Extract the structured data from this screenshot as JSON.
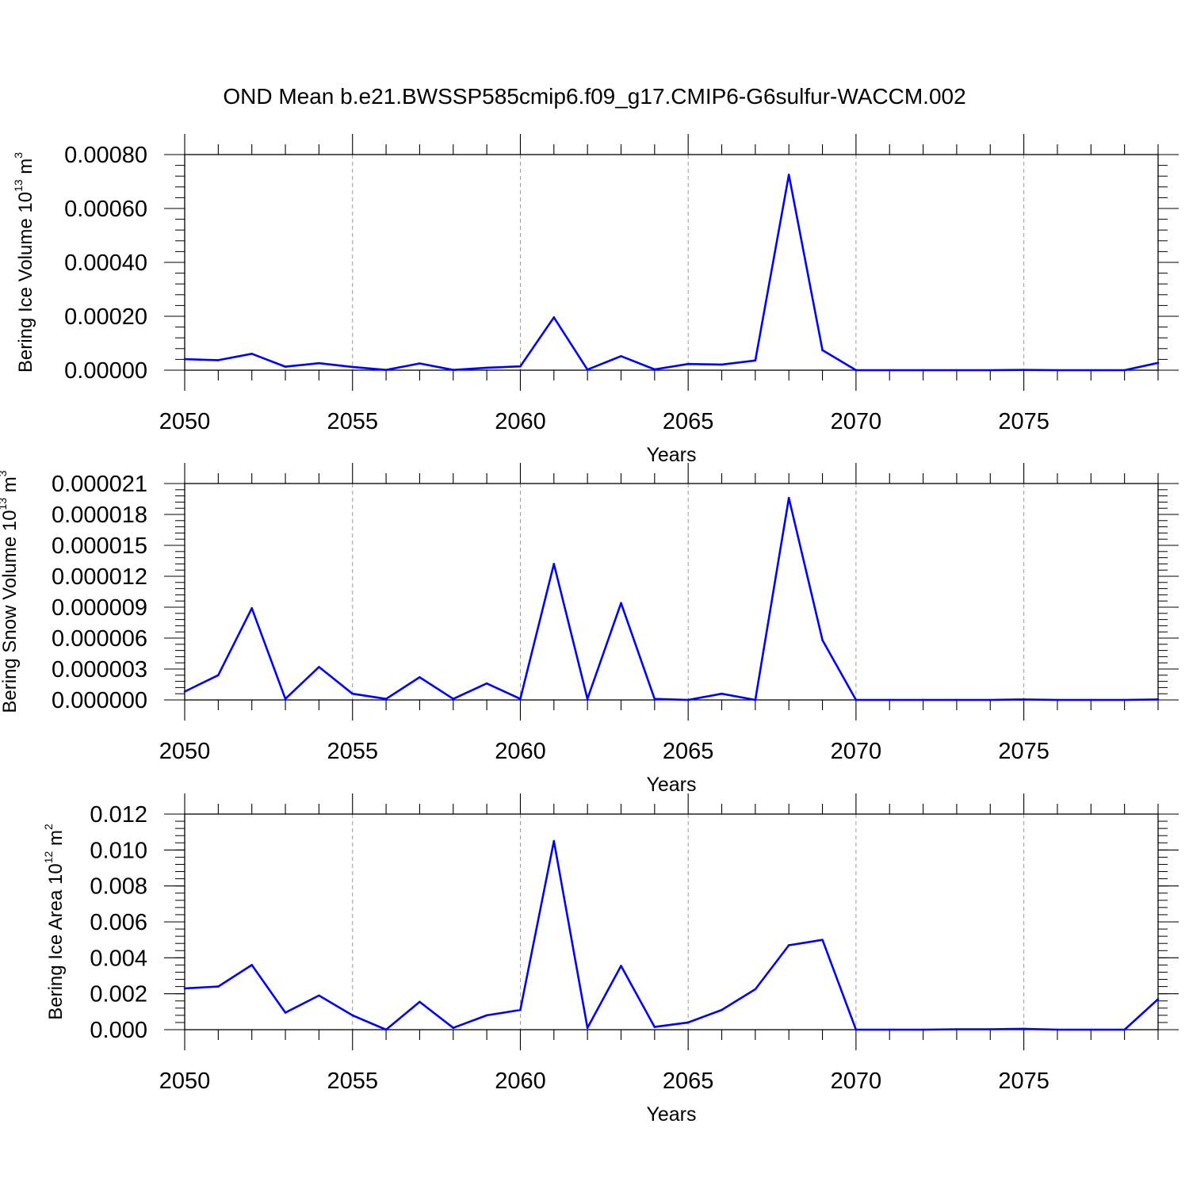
{
  "figure": {
    "title": "OND Mean b.e21.BWSSP585cmip6.f09_g17.CMIP6-G6sulfur-WACCM.002"
  },
  "chart_data": [
    {
      "type": "line",
      "xlabel": "Years",
      "ylabel": {
        "text": "Bering Ice Volume 10",
        "exp": "13",
        "unit": " m",
        "unit_exp": "3"
      },
      "xlim": [
        2050,
        2079
      ],
      "ylim": [
        0,
        0.0008
      ],
      "x_ticks": [
        2050,
        2055,
        2060,
        2065,
        2070,
        2075
      ],
      "x_tick_labels": [
        "2050",
        "2055",
        "2060",
        "2065",
        "2070",
        "2075"
      ],
      "y_ticks": [
        0,
        0.0002,
        0.0004,
        0.0006,
        0.0008
      ],
      "y_tick_labels": [
        "0.00000",
        "0.00020",
        "0.00040",
        "0.00060",
        "0.00080"
      ],
      "y_minor_step": 4e-05,
      "grid": "dashed vertical at major x ticks",
      "line_color": "#0000ff",
      "x": [
        2050,
        2051,
        2052,
        2053,
        2054,
        2055,
        2056,
        2057,
        2058,
        2059,
        2060,
        2061,
        2062,
        2063,
        2064,
        2065,
        2066,
        2067,
        2068,
        2069,
        2070,
        2071,
        2072,
        2073,
        2074,
        2075,
        2076,
        2077,
        2078,
        2079
      ],
      "values": [
        4.1e-05,
        3.7e-05,
        6.1e-05,
        1.3e-05,
        2.6e-05,
        1.2e-05,
        1e-06,
        2.5e-05,
        1e-06,
        9e-06,
        1.4e-05,
        0.000196,
        2e-06,
        5.2e-05,
        3e-06,
        2.3e-05,
        2.1e-05,
        3.6e-05,
        0.000725,
        7.4e-05,
        0.0,
        0.0,
        0.0,
        0.0,
        0.0,
        1e-06,
        0.0,
        0.0,
        0.0,
        2.7e-05
      ]
    },
    {
      "type": "line",
      "xlabel": "Years",
      "ylabel": {
        "text": "Bering Snow Volume 10",
        "exp": "13",
        "unit": " m",
        "unit_exp": "3"
      },
      "xlim": [
        2050,
        2079
      ],
      "ylim": [
        0,
        2.1e-05
      ],
      "x_ticks": [
        2050,
        2055,
        2060,
        2065,
        2070,
        2075
      ],
      "x_tick_labels": [
        "2050",
        "2055",
        "2060",
        "2065",
        "2070",
        "2075"
      ],
      "y_ticks": [
        0,
        3e-06,
        6e-06,
        9e-06,
        1.2e-05,
        1.5e-05,
        1.8e-05,
        2.1e-05
      ],
      "y_tick_labels": [
        "0.000000",
        "0.000003",
        "0.000006",
        "0.000009",
        "0.000012",
        "0.000015",
        "0.000018",
        "0.000021"
      ],
      "y_minor_step": 6e-07,
      "grid": "dashed vertical at major x ticks",
      "line_color": "#0000ff",
      "x": [
        2050,
        2051,
        2052,
        2053,
        2054,
        2055,
        2056,
        2057,
        2058,
        2059,
        2060,
        2061,
        2062,
        2063,
        2064,
        2065,
        2066,
        2067,
        2068,
        2069,
        2070,
        2071,
        2072,
        2073,
        2074,
        2075,
        2076,
        2077,
        2078,
        2079
      ],
      "values": [
        8.1e-07,
        2.4e-06,
        8.9e-06,
        1e-07,
        3.2e-06,
        6e-07,
        1e-07,
        2.2e-06,
        1e-07,
        1.6e-06,
        1e-07,
        1.32e-05,
        1e-07,
        9.4e-06,
        1e-07,
        0.0,
        6e-07,
        0.0,
        1.96e-05,
        5.8e-06,
        0.0,
        0.0,
        0.0,
        0.0,
        0.0,
        5e-08,
        0.0,
        0.0,
        0.0,
        5e-08
      ]
    },
    {
      "type": "line",
      "xlabel": "Years",
      "ylabel": {
        "text": "Bering Ice Area 10",
        "exp": "12",
        "unit": " m",
        "unit_exp": "2"
      },
      "xlim": [
        2050,
        2079
      ],
      "ylim": [
        0,
        0.012
      ],
      "x_ticks": [
        2050,
        2055,
        2060,
        2065,
        2070,
        2075
      ],
      "x_tick_labels": [
        "2050",
        "2055",
        "2060",
        "2065",
        "2070",
        "2075"
      ],
      "y_ticks": [
        0,
        0.002,
        0.004,
        0.006,
        0.008,
        0.01,
        0.012
      ],
      "y_tick_labels": [
        "0.000",
        "0.002",
        "0.004",
        "0.006",
        "0.008",
        "0.010",
        "0.012"
      ],
      "y_minor_step": 0.0004,
      "grid": "dashed vertical at major x ticks",
      "line_color": "#0000ff",
      "x": [
        2050,
        2051,
        2052,
        2053,
        2054,
        2055,
        2056,
        2057,
        2058,
        2059,
        2060,
        2061,
        2062,
        2063,
        2064,
        2065,
        2066,
        2067,
        2068,
        2069,
        2070,
        2071,
        2072,
        2073,
        2074,
        2075,
        2076,
        2077,
        2078,
        2079
      ],
      "values": [
        0.0023,
        0.0024,
        0.0036,
        0.00095,
        0.0019,
        0.0008,
        0.0,
        0.00155,
        0.0001,
        0.0008,
        0.0011,
        0.0105,
        0.0001,
        0.00355,
        0.00015,
        0.0004,
        0.0011,
        0.00225,
        0.0047,
        0.005,
        0.0,
        0.0,
        0.0,
        2e-05,
        2e-05,
        5e-05,
        0.0,
        0.0,
        0.0,
        0.0017
      ]
    }
  ]
}
